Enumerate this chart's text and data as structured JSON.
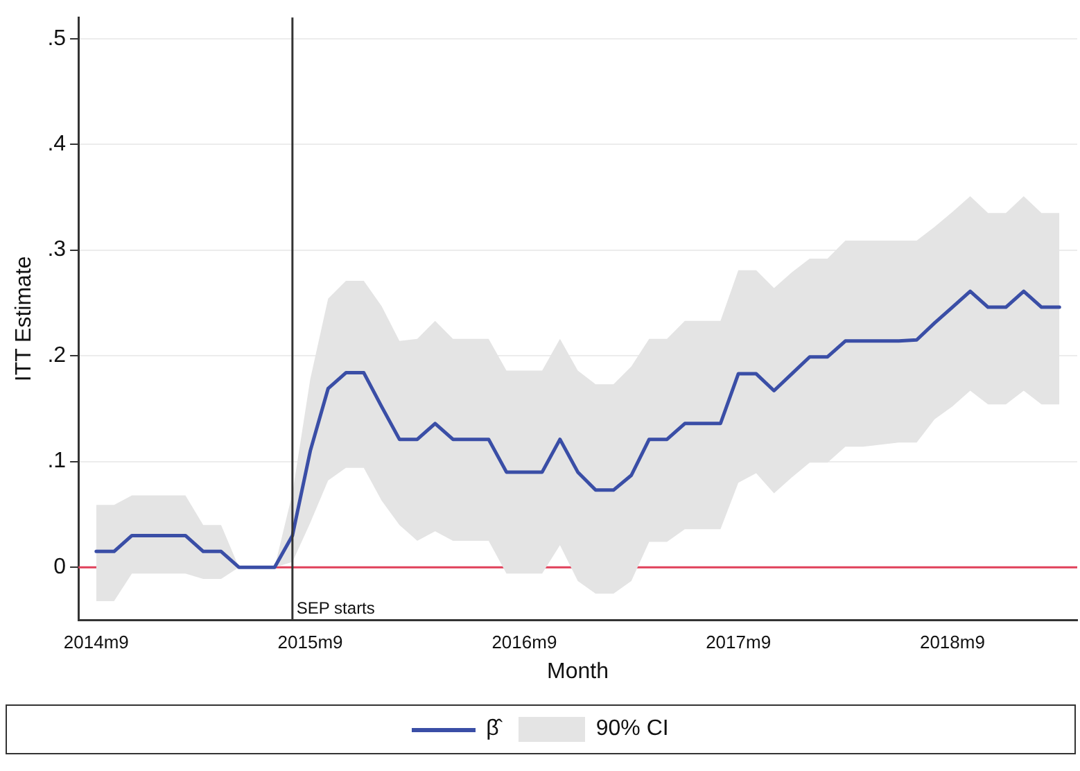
{
  "chart_data": {
    "type": "line",
    "xlabel": "Month",
    "ylabel": "ITT Estimate",
    "x": [
      "2014-09",
      "2014-10",
      "2014-11",
      "2014-12",
      "2015-01",
      "2015-02",
      "2015-03",
      "2015-04",
      "2015-05",
      "2015-06",
      "2015-07",
      "2015-08",
      "2015-09",
      "2015-10",
      "2015-11",
      "2015-12",
      "2016-01",
      "2016-02",
      "2016-03",
      "2016-04",
      "2016-05",
      "2016-06",
      "2016-07",
      "2016-08",
      "2016-09",
      "2016-10",
      "2016-11",
      "2016-12",
      "2017-01",
      "2017-02",
      "2017-03",
      "2017-04",
      "2017-05",
      "2017-06",
      "2017-07",
      "2017-08",
      "2017-09",
      "2017-10",
      "2017-11",
      "2017-12",
      "2018-01",
      "2018-02",
      "2018-03",
      "2018-04",
      "2018-05",
      "2018-06",
      "2018-07",
      "2018-08",
      "2018-09",
      "2018-10",
      "2018-11",
      "2018-12",
      "2019-01",
      "2019-02",
      "2019-03"
    ],
    "series": [
      {
        "name": "β̂",
        "color": "#3a4ea6",
        "values": [
          0.015,
          0.015,
          0.03,
          0.03,
          0.03,
          0.03,
          0.015,
          0.015,
          0,
          0,
          0,
          0.03,
          0.11,
          0.169,
          0.184,
          0.184,
          0.152,
          0.121,
          0.121,
          0.136,
          0.121,
          0.121,
          0.121,
          0.09,
          0.09,
          0.09,
          0.121,
          0.09,
          0.073,
          0.073,
          0.087,
          0.121,
          0.121,
          0.136,
          0.136,
          0.136,
          0.183,
          0.183,
          0.167,
          0.183,
          0.199,
          0.199,
          0.214,
          0.214,
          0.214,
          0.214,
          0.215,
          0.231,
          0.246,
          0.261,
          0.246,
          0.246,
          0.261,
          0.246,
          0.246
        ],
        "lower": [
          -0.032,
          -0.032,
          -0.006,
          -0.006,
          -0.006,
          -0.006,
          -0.011,
          -0.011,
          0,
          0,
          0,
          0.005,
          0.042,
          0.082,
          0.094,
          0.094,
          0.063,
          0.04,
          0.025,
          0.034,
          0.025,
          0.025,
          0.025,
          -0.006,
          -0.006,
          -0.006,
          0.021,
          -0.013,
          -0.025,
          -0.025,
          -0.013,
          0.024,
          0.024,
          0.036,
          0.036,
          0.036,
          0.08,
          0.089,
          0.07,
          0.085,
          0.099,
          0.099,
          0.114,
          0.114,
          0.116,
          0.118,
          0.118,
          0.14,
          0.152,
          0.167,
          0.154,
          0.154,
          0.167,
          0.154,
          0.154
        ],
        "upper": [
          0.059,
          0.059,
          0.068,
          0.068,
          0.068,
          0.068,
          0.04,
          0.04,
          0,
          0,
          0,
          0.07,
          0.178,
          0.254,
          0.271,
          0.271,
          0.247,
          0.214,
          0.216,
          0.233,
          0.216,
          0.216,
          0.216,
          0.186,
          0.186,
          0.186,
          0.216,
          0.186,
          0.173,
          0.173,
          0.19,
          0.216,
          0.216,
          0.233,
          0.233,
          0.233,
          0.281,
          0.281,
          0.264,
          0.279,
          0.292,
          0.292,
          0.309,
          0.309,
          0.309,
          0.309,
          0.309,
          0.322,
          0.336,
          0.351,
          0.335,
          0.335,
          0.351,
          0.335,
          0.335
        ]
      }
    ],
    "xlim": [
      "2014-08",
      "2019-04"
    ],
    "xticks": [
      {
        "value": "2014-09",
        "label": "2014m9"
      },
      {
        "value": "2015-09",
        "label": "2015m9"
      },
      {
        "value": "2016-09",
        "label": "2016m9"
      },
      {
        "value": "2017-09",
        "label": "2017m9"
      },
      {
        "value": "2018-09",
        "label": "2018m9"
      }
    ],
    "ylim": [
      -0.05,
      0.52
    ],
    "yticks": [
      0,
      {
        "value": 0.1,
        "label": ".1"
      },
      {
        "value": 0.2,
        "label": ".2"
      },
      {
        "value": 0.3,
        "label": ".3"
      },
      {
        "value": 0.4,
        "label": ".4"
      },
      {
        "value": 0.5,
        "label": ".5"
      }
    ],
    "ref_lines": [
      {
        "axis": "y",
        "value": 0,
        "color": "#e0405a"
      },
      {
        "axis": "x",
        "value": "2015-08",
        "label": "SEP starts",
        "color": "#333333"
      }
    ],
    "annotations": [
      "90% CI"
    ],
    "grid": "y",
    "legend": "bottom",
    "marker": "none",
    "line_style": "solid"
  }
}
